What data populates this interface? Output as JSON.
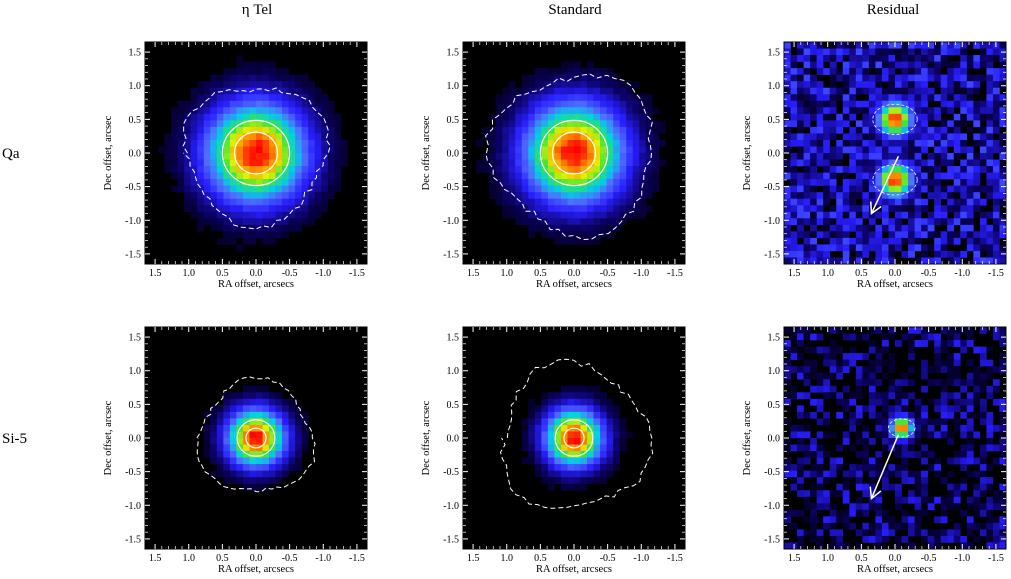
{
  "figure": {
    "column_titles": [
      "η Tel",
      "Standard",
      "Residual"
    ],
    "row_labels": [
      "Qa",
      "Si-5"
    ],
    "x_axis_label": "RA offset, arcsecs",
    "y_axis_label": "Dec offset, arcsec",
    "x_ticks": [
      "1.5",
      "1.0",
      "0.5",
      "0.0",
      "-0.5",
      "-1.0",
      "-1.5"
    ],
    "y_ticks": [
      "-1.5",
      "-1.0",
      "-0.5",
      "0.0",
      "0.5",
      "1.0",
      "1.5"
    ]
  },
  "chart_data": [
    {
      "type": "heatmap",
      "row": "Qa",
      "column": "η Tel",
      "xlim": [
        1.65,
        -1.65
      ],
      "ylim": [
        -1.65,
        1.65
      ],
      "peak_position": [
        0.0,
        0.0
      ],
      "contour_style": "solid and dashed"
    },
    {
      "type": "heatmap",
      "row": "Qa",
      "column": "Standard",
      "xlim": [
        1.65,
        -1.65
      ],
      "ylim": [
        -1.65,
        1.65
      ],
      "peak_position": [
        0.0,
        0.0
      ],
      "contour_style": "solid and dashed"
    },
    {
      "type": "heatmap",
      "row": "Qa",
      "column": "Residual",
      "xlim": [
        1.65,
        -1.65
      ],
      "ylim": [
        -1.65,
        1.65
      ],
      "blobs": [
        [
          0.0,
          0.5
        ],
        [
          0.0,
          -0.4
        ]
      ],
      "arrow": {
        "from": [
          -0.05,
          -0.05
        ],
        "to": [
          0.35,
          -0.9
        ]
      }
    },
    {
      "type": "heatmap",
      "row": "Si-5",
      "column": "η Tel",
      "xlim": [
        1.65,
        -1.65
      ],
      "ylim": [
        -1.65,
        1.65
      ],
      "peak_position": [
        0.0,
        0.0
      ],
      "contour_style": "solid and dashed"
    },
    {
      "type": "heatmap",
      "row": "Si-5",
      "column": "Standard",
      "xlim": [
        1.65,
        -1.65
      ],
      "ylim": [
        -1.65,
        1.65
      ],
      "peak_position": [
        0.0,
        0.0
      ],
      "contour_style": "solid and dashed"
    },
    {
      "type": "heatmap",
      "row": "Si-5",
      "column": "Residual",
      "xlim": [
        1.65,
        -1.65
      ],
      "ylim": [
        -1.65,
        1.65
      ],
      "blobs": [
        [
          -0.1,
          0.15
        ]
      ],
      "arrow": {
        "from": [
          -0.05,
          0.05
        ],
        "to": [
          0.35,
          -0.9
        ]
      }
    }
  ]
}
